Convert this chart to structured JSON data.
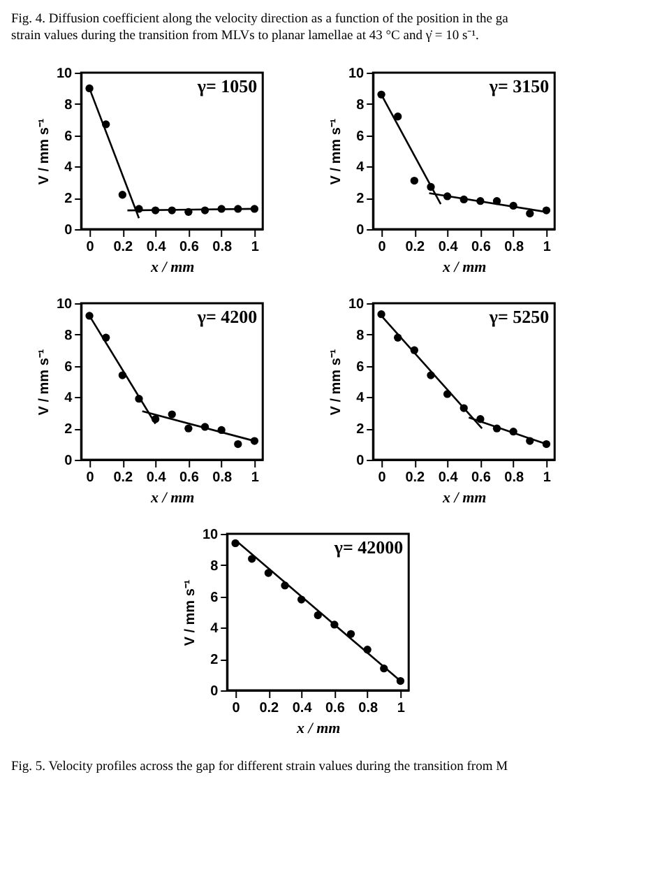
{
  "chart_data": [
    {
      "type": "scatter",
      "annotations": [
        "γ= 1050",
        "Fig. 4. Diffusion coefficient along the velocity direction as a function of the position in the ga\nstrain values during the transition from MLVs to planar lamellae at 43 °C and γ̇ = 10 s⁻¹."
      ],
      "xlabel": "x / mm",
      "ylabel": "V / mm s⁻¹",
      "xlim": [
        -0.05,
        1.05
      ],
      "ylim": [
        0,
        10
      ],
      "xticks": [
        0,
        0.2,
        0.4,
        0.6,
        0.8,
        1
      ],
      "yticks": [
        0,
        2,
        4,
        6,
        8,
        10
      ],
      "series": [
        {
          "type": "scatter",
          "color": "#000000",
          "x": [
            0,
            0.1,
            0.2,
            0.3,
            0.4,
            0.5,
            0.6,
            0.7,
            0.8,
            0.9,
            1
          ],
          "values": [
            9.0,
            6.7,
            2.2,
            1.3,
            1.2,
            1.2,
            1.1,
            1.2,
            1.3,
            1.3,
            1.3
          ]
        },
        {
          "type": "line",
          "color": "#000000",
          "x": [
            0,
            0.3
          ],
          "values": [
            9.0,
            0.7
          ]
        },
        {
          "type": "line",
          "color": "#000000",
          "x": [
            0.23,
            1
          ],
          "values": [
            1.2,
            1.3
          ]
        }
      ]
    },
    {
      "type": "scatter",
      "annotations": [
        "γ= 3150"
      ],
      "xlabel": "x / mm",
      "ylabel": "V / mm s⁻¹",
      "xlim": [
        -0.05,
        1.05
      ],
      "ylim": [
        0,
        10
      ],
      "xticks": [
        0,
        0.2,
        0.4,
        0.6,
        0.8,
        1
      ],
      "yticks": [
        0,
        2,
        4,
        6,
        8,
        10
      ],
      "series": [
        {
          "type": "scatter",
          "color": "#000000",
          "x": [
            0,
            0.1,
            0.2,
            0.3,
            0.4,
            0.5,
            0.6,
            0.7,
            0.8,
            0.9,
            1
          ],
          "values": [
            8.6,
            7.2,
            3.1,
            2.7,
            2.1,
            1.9,
            1.8,
            1.8,
            1.5,
            1.0,
            1.2
          ]
        },
        {
          "type": "line",
          "color": "#000000",
          "x": [
            0,
            0.36
          ],
          "values": [
            8.6,
            1.6
          ]
        },
        {
          "type": "line",
          "color": "#000000",
          "x": [
            0.29,
            1
          ],
          "values": [
            2.3,
            1.1
          ]
        }
      ]
    },
    {
      "type": "scatter",
      "annotations": [
        "γ= 4200"
      ],
      "xlabel": "x / mm",
      "ylabel": "V / mm s⁻¹",
      "xlim": [
        -0.05,
        1.05
      ],
      "ylim": [
        0,
        10
      ],
      "xticks": [
        0,
        0.2,
        0.4,
        0.6,
        0.8,
        1
      ],
      "yticks": [
        0,
        2,
        4,
        6,
        8,
        10
      ],
      "series": [
        {
          "type": "scatter",
          "color": "#000000",
          "x": [
            0,
            0.1,
            0.2,
            0.3,
            0.4,
            0.5,
            0.6,
            0.7,
            0.8,
            0.9,
            1
          ],
          "values": [
            9.2,
            7.8,
            5.4,
            3.9,
            2.6,
            2.9,
            2.0,
            2.1,
            1.9,
            1.0,
            1.2
          ]
        },
        {
          "type": "line",
          "color": "#000000",
          "x": [
            0,
            0.4
          ],
          "values": [
            9.2,
            2.3
          ]
        },
        {
          "type": "line",
          "color": "#000000",
          "x": [
            0.32,
            1
          ],
          "values": [
            3.1,
            1.2
          ]
        }
      ]
    },
    {
      "type": "scatter",
      "annotations": [
        "γ= 5250"
      ],
      "xlabel": "x / mm",
      "ylabel": "V / mm s⁻¹",
      "xlim": [
        -0.05,
        1.05
      ],
      "ylim": [
        0,
        10
      ],
      "xticks": [
        0,
        0.2,
        0.4,
        0.6,
        0.8,
        1
      ],
      "yticks": [
        0,
        2,
        4,
        6,
        8,
        10
      ],
      "series": [
        {
          "type": "scatter",
          "color": "#000000",
          "x": [
            0,
            0.1,
            0.2,
            0.3,
            0.4,
            0.5,
            0.6,
            0.7,
            0.8,
            0.9,
            1
          ],
          "values": [
            9.3,
            7.8,
            7.0,
            5.4,
            4.2,
            3.3,
            2.6,
            2.0,
            1.8,
            1.2,
            1.0
          ]
        },
        {
          "type": "line",
          "color": "#000000",
          "x": [
            0,
            0.61
          ],
          "values": [
            9.2,
            2.0
          ]
        },
        {
          "type": "line",
          "color": "#000000",
          "x": [
            0.53,
            1
          ],
          "values": [
            2.7,
            1.0
          ]
        }
      ]
    },
    {
      "type": "scatter",
      "annotations": [
        "γ= 42000",
        "Fig. 5. Velocity profiles across the gap for different strain values during the transition from M"
      ],
      "xlabel": "x / mm",
      "ylabel": "V / mm s⁻¹",
      "xlim": [
        -0.05,
        1.05
      ],
      "ylim": [
        0,
        10
      ],
      "xticks": [
        0,
        0.2,
        0.4,
        0.6,
        0.8,
        1
      ],
      "yticks": [
        0,
        2,
        4,
        6,
        8,
        10
      ],
      "series": [
        {
          "type": "scatter",
          "color": "#000000",
          "x": [
            0,
            0.1,
            0.2,
            0.3,
            0.4,
            0.5,
            0.6,
            0.7,
            0.8,
            0.9,
            1
          ],
          "values": [
            9.4,
            8.4,
            7.5,
            6.7,
            5.8,
            4.8,
            4.2,
            3.6,
            2.6,
            1.4,
            0.6
          ]
        },
        {
          "type": "line",
          "color": "#000000",
          "x": [
            0,
            1
          ],
          "values": [
            9.6,
            0.6
          ]
        }
      ]
    }
  ]
}
